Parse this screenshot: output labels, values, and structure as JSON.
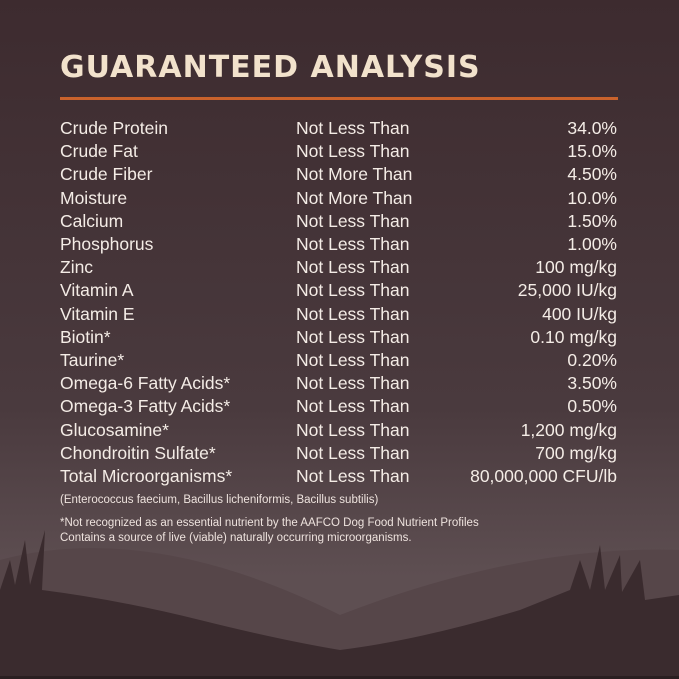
{
  "title": "GUARANTEED ANALYSIS",
  "colors": {
    "background": "#3d2b2f",
    "title": "#f2e2cc",
    "rule": "#c9622c",
    "text": "#f4ece6"
  },
  "rows": [
    {
      "nutrient": "Crude Protein",
      "qualifier": "Not Less Than",
      "value": "34.0%"
    },
    {
      "nutrient": "Crude Fat",
      "qualifier": "Not Less Than",
      "value": "15.0%"
    },
    {
      "nutrient": "Crude Fiber",
      "qualifier": "Not More Than",
      "value": "4.50%"
    },
    {
      "nutrient": "Moisture",
      "qualifier": "Not More Than",
      "value": "10.0%"
    },
    {
      "nutrient": "Calcium",
      "qualifier": "Not Less Than",
      "value": "1.50%"
    },
    {
      "nutrient": "Phosphorus",
      "qualifier": "Not Less Than",
      "value": "1.00%"
    },
    {
      "nutrient": "Zinc",
      "qualifier": "Not Less Than",
      "value": "100 mg/kg"
    },
    {
      "nutrient": "Vitamin A",
      "qualifier": "Not Less Than",
      "value": "25,000 IU/kg"
    },
    {
      "nutrient": "Vitamin E",
      "qualifier": "Not Less Than",
      "value": "400 IU/kg"
    },
    {
      "nutrient": "Biotin*",
      "qualifier": "Not Less Than",
      "value": "0.10 mg/kg"
    },
    {
      "nutrient": "Taurine*",
      "qualifier": "Not Less Than",
      "value": "0.20%"
    },
    {
      "nutrient": "Omega-6 Fatty Acids*",
      "qualifier": "Not Less Than",
      "value": "3.50%"
    },
    {
      "nutrient": "Omega-3 Fatty Acids*",
      "qualifier": "Not Less Than",
      "value": "0.50%"
    },
    {
      "nutrient": "Glucosamine*",
      "qualifier": "Not Less Than",
      "value": "1,200 mg/kg"
    },
    {
      "nutrient": "Chondroitin Sulfate*",
      "qualifier": "Not Less Than",
      "value": "700 mg/kg"
    },
    {
      "nutrient": "Total Microorganisms*",
      "qualifier": "Not Less Than",
      "value": "80,000,000 CFU/lb"
    }
  ],
  "strains": "(Enterococcus faecium, Bacillus licheniformis, Bacillus subtilis)",
  "footnote1": "*Not recognized as an essential nutrient by the AAFCO Dog Food Nutrient Profiles",
  "footnote2": "Contains a source of live (viable) naturally occurring microorganisms."
}
